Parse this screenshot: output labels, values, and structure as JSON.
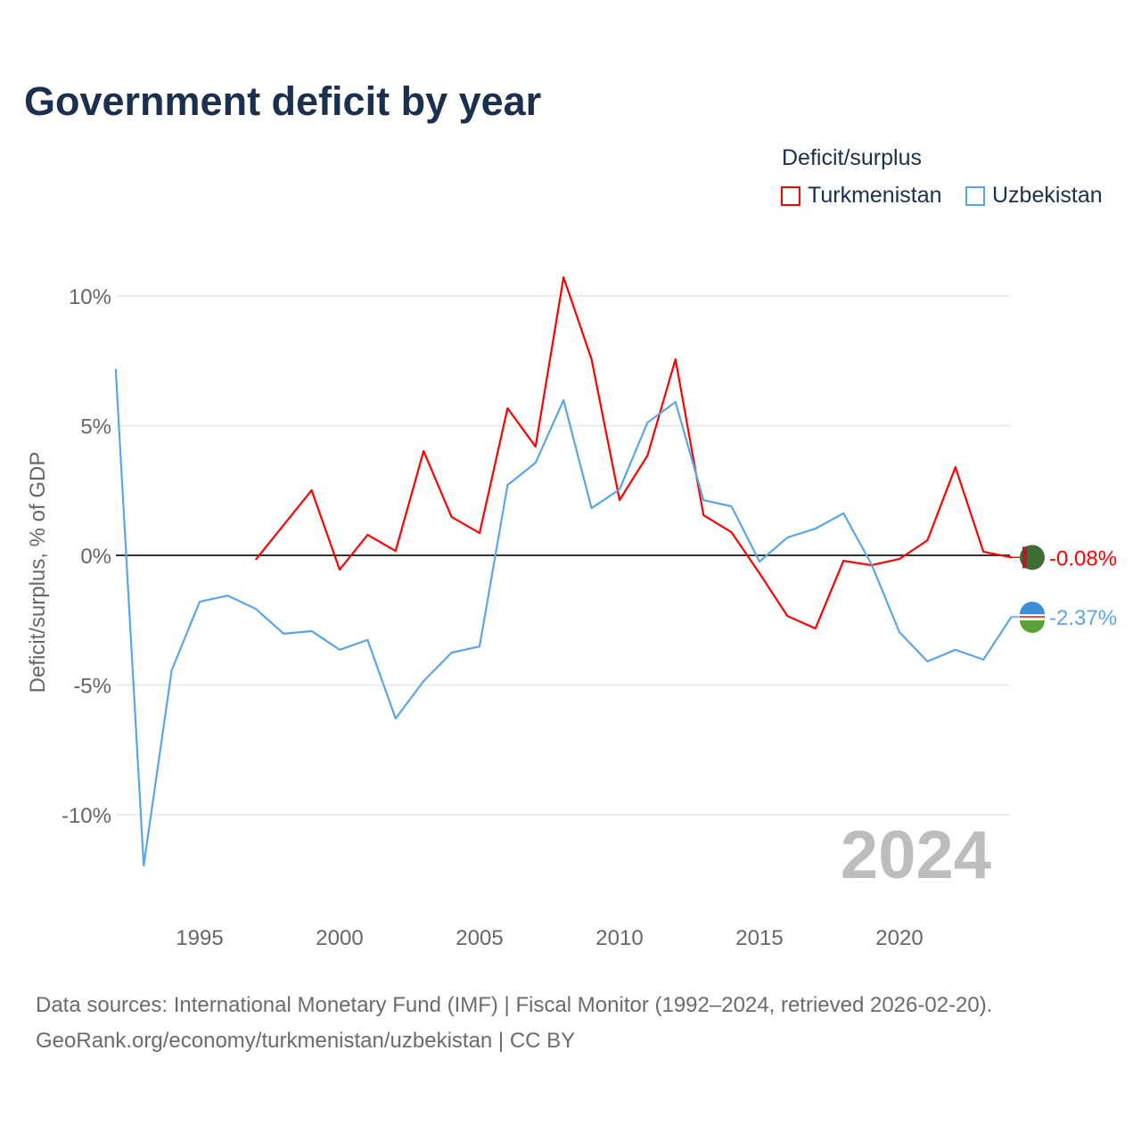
{
  "title": "Government deficit by year",
  "legend": {
    "title": "Deficit/surplus",
    "items": [
      {
        "label": "Turkmenistan",
        "color": "#ff0000"
      },
      {
        "label": "Uzbekistan",
        "color": "#5aa5ea"
      }
    ]
  },
  "footer": {
    "line1": "Data sources: International Monetary Fund (IMF) | Fiscal Monitor (1992–2024, retrieved 2026-02-20).",
    "line2": "GeoRank.org/economy/turkmenistan/uzbekistan | CC BY"
  },
  "chart_data": {
    "type": "line",
    "title": "Government deficit by year",
    "xlabel": "",
    "ylabel": "Deficit/surplus, % of GDP",
    "xlim": [
      1992,
      2024
    ],
    "ylim": [
      -12.5,
      12
    ],
    "x_ticks": [
      1995,
      2000,
      2005,
      2010,
      2015,
      2020
    ],
    "y_ticks": [
      10,
      5,
      0,
      -5,
      -10
    ],
    "y_tick_labels": [
      "10%",
      "5%",
      "0%",
      "-5%",
      "-10%"
    ],
    "watermark_year": "2024",
    "series": [
      {
        "name": "Turkmenistan",
        "color": "#ff0000",
        "end_label": "-0.08%",
        "x": [
          1997,
          1998,
          1999,
          2000,
          2001,
          2002,
          2003,
          2004,
          2005,
          2006,
          2007,
          2008,
          2009,
          2010,
          2011,
          2012,
          2013,
          2014,
          2015,
          2016,
          2017,
          2018,
          2019,
          2020,
          2021,
          2022,
          2023,
          2024
        ],
        "values": [
          -0.17,
          1.17,
          2.51,
          -0.55,
          0.79,
          0.17,
          4.02,
          1.48,
          0.86,
          5.67,
          4.19,
          10.72,
          7.56,
          2.13,
          3.85,
          7.56,
          1.55,
          0.89,
          -0.69,
          -2.34,
          -2.82,
          -0.21,
          -0.38,
          -0.14,
          0.58,
          3.4,
          0.14,
          -0.08
        ]
      },
      {
        "name": "Uzbekistan",
        "color": "#5aa5ea",
        "end_label": "-2.37%",
        "x": [
          1992,
          1993,
          1994,
          1995,
          1996,
          1997,
          1998,
          1999,
          2000,
          2001,
          2002,
          2003,
          2004,
          2005,
          2006,
          2007,
          2008,
          2009,
          2010,
          2011,
          2012,
          2013,
          2014,
          2015,
          2016,
          2017,
          2018,
          2019,
          2020,
          2021,
          2022,
          2023,
          2024
        ],
        "values": [
          7.18,
          -11.96,
          -4.43,
          -1.79,
          -1.55,
          -2.06,
          -3.02,
          -2.92,
          -3.64,
          -3.26,
          -6.29,
          -4.85,
          -3.75,
          -3.51,
          2.71,
          3.57,
          5.98,
          1.82,
          2.54,
          5.12,
          5.91,
          2.13,
          1.89,
          -0.24,
          0.69,
          1.03,
          1.62,
          -0.34,
          -2.96,
          -4.09,
          -3.64,
          -4.02,
          -2.37
        ]
      }
    ]
  }
}
